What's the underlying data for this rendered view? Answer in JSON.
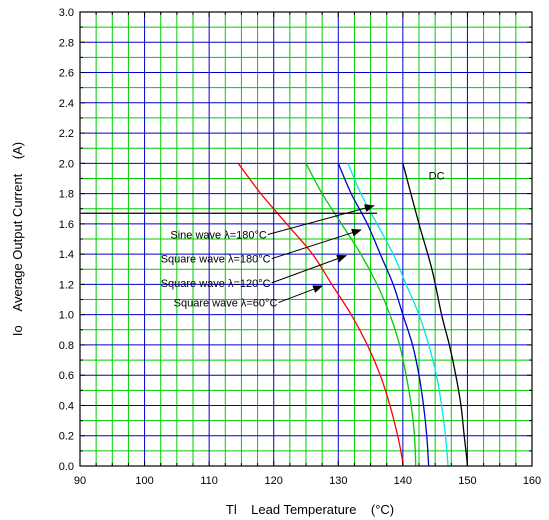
{
  "chart_data": {
    "type": "line",
    "xlabel": "Tl    Lead Temperature    (°C)",
    "ylabel": "Io    Average Output Current    (A)",
    "xlim": [
      90,
      160
    ],
    "ylim": [
      0.0,
      3.0
    ],
    "x_ticks": [
      "90",
      "100",
      "110",
      "120",
      "130",
      "140",
      "150",
      "160"
    ],
    "y_ticks": [
      "0.0",
      "0.2",
      "0.4",
      "0.6",
      "0.8",
      "1.0",
      "1.2",
      "1.4",
      "1.6",
      "1.8",
      "2.0",
      "2.2",
      "2.4",
      "2.6",
      "2.8",
      "3.0"
    ],
    "grid": true,
    "colors": {
      "major_grid": "#0000cc",
      "minor_grid": "#00cc00",
      "axis": "#000000"
    },
    "series": [
      {
        "name": "Square wave λ=60°C",
        "color": "#ff0000",
        "x": [
          114.5,
          118,
          122,
          126,
          129,
          132,
          134.5,
          136.5,
          138,
          139.2,
          139.9,
          140.0
        ],
        "y": [
          2.0,
          1.8,
          1.6,
          1.4,
          1.2,
          1.0,
          0.8,
          0.6,
          0.4,
          0.2,
          0.05,
          0.0
        ]
      },
      {
        "name": "Square wave λ=120°C",
        "color": "#00cc00",
        "x": [
          125,
          127.5,
          130.5,
          133.5,
          136,
          138,
          139.5,
          140.5,
          141.3,
          141.8,
          142.0
        ],
        "y": [
          2.0,
          1.8,
          1.6,
          1.4,
          1.2,
          1.0,
          0.8,
          0.6,
          0.4,
          0.2,
          0.0
        ]
      },
      {
        "name": "Square wave λ=180°C",
        "color": "#0000cc",
        "x": [
          130,
          132,
          134.5,
          136.5,
          138.5,
          140,
          141.5,
          142.5,
          143.2,
          143.7,
          144.0
        ],
        "y": [
          2.0,
          1.8,
          1.6,
          1.4,
          1.2,
          1.0,
          0.8,
          0.6,
          0.4,
          0.2,
          0.0
        ]
      },
      {
        "name": "Sine wave λ=180°C",
        "color": "#00e5e5",
        "x": [
          131.5,
          133.5,
          136,
          138.5,
          140.5,
          142.5,
          144,
          145.2,
          146.0,
          146.6,
          147.0
        ],
        "y": [
          2.0,
          1.8,
          1.6,
          1.4,
          1.2,
          1.0,
          0.8,
          0.6,
          0.4,
          0.2,
          0.0
        ]
      },
      {
        "name": "DC",
        "color": "#000000",
        "x": [
          140,
          142.5,
          144.5,
          146,
          147.2,
          148.2,
          149.0,
          149.5,
          149.9,
          150.0
        ],
        "y": [
          2.0,
          1.6,
          1.3,
          1.0,
          0.8,
          0.6,
          0.4,
          0.2,
          0.05,
          0.0
        ]
      }
    ],
    "reference_line": {
      "x": [
        90,
        136
      ],
      "y": [
        1.67,
        1.67
      ]
    },
    "annotations": [
      {
        "text": "DC",
        "at": [
          144,
          1.92
        ]
      },
      {
        "text": "Sine wave λ=180°C",
        "at": [
          104,
          1.53
        ],
        "arrow_to": [
          135.5,
          1.72
        ]
      },
      {
        "text": "Square wave λ=180°C",
        "at": [
          102.5,
          1.37
        ],
        "arrow_to": [
          133.5,
          1.56
        ]
      },
      {
        "text": "Square wave λ=120°C",
        "at": [
          102.5,
          1.21
        ],
        "arrow_to": [
          131.2,
          1.39
        ]
      },
      {
        "text": "Square wave λ=60°C",
        "at": [
          104.5,
          1.08
        ],
        "arrow_to": [
          127.5,
          1.19
        ]
      }
    ]
  }
}
